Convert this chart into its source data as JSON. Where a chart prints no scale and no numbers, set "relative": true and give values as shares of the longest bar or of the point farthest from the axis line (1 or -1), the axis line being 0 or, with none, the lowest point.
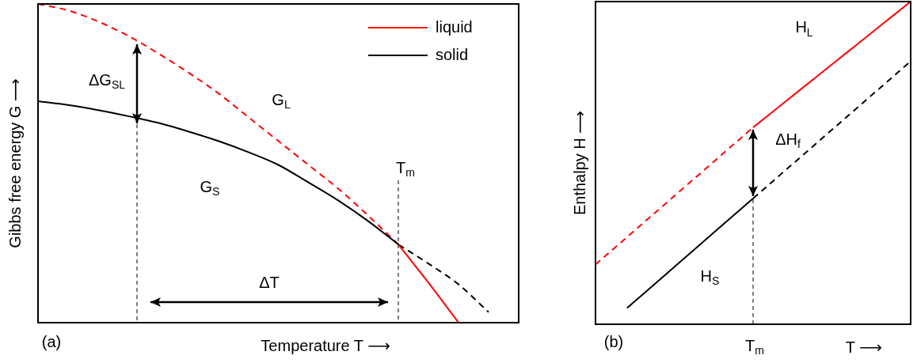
{
  "chart_data": [
    {
      "type": "line",
      "relative": true,
      "xlabel": "Temperature T ⟶",
      "ylabel": "Gibbs free energy G ⟶",
      "legend": "top right",
      "categories": [
        null,
        null,
        null,
        null,
        null,
        null,
        null,
        null,
        null,
        null,
        null,
        null,
        null,
        null,
        null,
        null,
        null
      ],
      "series": [
        {
          "name": "liquid",
          "color": "#ff0000",
          "line_style": "solid",
          "values": [
            null,
            null,
            null,
            null,
            null,
            null,
            null,
            null,
            null,
            null,
            null,
            null,
            0.245,
            0.125,
            0.0,
            null,
            null
          ]
        },
        {
          "name": "solid",
          "color": "#000000",
          "line_style": "solid",
          "values": [
            0.695,
            0.683,
            0.667,
            0.648,
            0.627,
            0.6,
            0.57,
            0.535,
            0.495,
            0.44,
            0.383,
            0.318,
            0.245,
            null,
            null,
            null,
            null
          ]
        },
        {
          "color": "#ff0000",
          "line_style": "dashed",
          "values": [
            1.0,
            0.98,
            0.945,
            0.9,
            0.845,
            0.785,
            0.72,
            0.645,
            0.57,
            0.495,
            0.42,
            0.335,
            0.245,
            null,
            null,
            null,
            null
          ]
        },
        {
          "color": "#000000",
          "line_style": "dashed",
          "values": [
            null,
            null,
            null,
            null,
            null,
            null,
            null,
            null,
            null,
            null,
            null,
            null,
            0.245,
            0.185,
            0.12,
            0.033,
            null
          ]
        }
      ],
      "annotations": [
        "ΔG$_{SL}$",
        "G$_{L}$",
        "G$_{S}$",
        "T$_{m}$",
        "ΔT",
        "(a)"
      ]
    },
    {
      "type": "line",
      "relative": true,
      "xlabel": "T ⟶",
      "ylabel": "Enthalpy H ⟶",
      "legend": false,
      "categories": [
        null,
        null,
        null,
        null,
        null,
        null,
        null,
        null,
        null,
        null,
        null
      ],
      "series": [
        {
          "name": "H$_{L}$",
          "color": "#ff0000",
          "line_style": "solid",
          "values": [
            null,
            null,
            null,
            null,
            null,
            0.61,
            0.688,
            0.766,
            0.844,
            0.922,
            1.0
          ]
        },
        {
          "name": "H$_{S}$",
          "color": "#000000",
          "line_style": "solid",
          "values": [
            null,
            0.05,
            0.135,
            0.22,
            0.305,
            0.39,
            null,
            null,
            null,
            null,
            null
          ]
        },
        {
          "color": "#ff0000",
          "line_style": "dashed",
          "values": [
            0.185,
            0.27,
            0.355,
            0.44,
            0.525,
            0.61,
            null,
            null,
            null,
            null,
            null
          ]
        },
        {
          "color": "#000000",
          "line_style": "dashed",
          "values": [
            null,
            null,
            null,
            null,
            null,
            0.39,
            0.475,
            0.56,
            0.645,
            0.73,
            0.815
          ]
        }
      ],
      "annotations": [
        "ΔH$_{f}$",
        "T$_{m}$",
        "(b)"
      ]
    }
  ]
}
